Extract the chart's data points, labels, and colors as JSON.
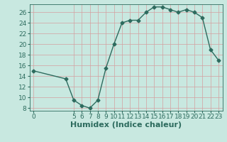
{
  "x": [
    0,
    4,
    5,
    6,
    7,
    8,
    9,
    10,
    11,
    12,
    13,
    14,
    15,
    16,
    17,
    18,
    19,
    20,
    21,
    22,
    23
  ],
  "y": [
    15,
    13.5,
    9.5,
    8.5,
    8,
    9.5,
    15.5,
    20,
    24,
    24.5,
    24.5,
    26,
    27,
    27,
    26.5,
    26,
    26.5,
    26,
    25,
    19,
    17
  ],
  "line_color": "#2d6b5e",
  "marker": "D",
  "marker_size": 2.5,
  "bg_color": "#c8e8e0",
  "grid_color_major": "#d4a0a0",
  "grid_color_minor": "#ddc8c8",
  "xlabel": "Humidex (Indice chaleur)",
  "xlabel_fontsize": 8,
  "xlim": [
    -0.5,
    23.5
  ],
  "ylim": [
    7.5,
    27.5
  ],
  "xticks": [
    0,
    5,
    6,
    7,
    8,
    9,
    10,
    11,
    12,
    13,
    14,
    15,
    16,
    17,
    18,
    19,
    20,
    21,
    22,
    23
  ],
  "yticks": [
    8,
    10,
    12,
    14,
    16,
    18,
    20,
    22,
    24,
    26
  ],
  "tick_fontsize": 6.5,
  "linewidth": 1.0,
  "figsize": [
    3.2,
    2.0
  ],
  "dpi": 100
}
